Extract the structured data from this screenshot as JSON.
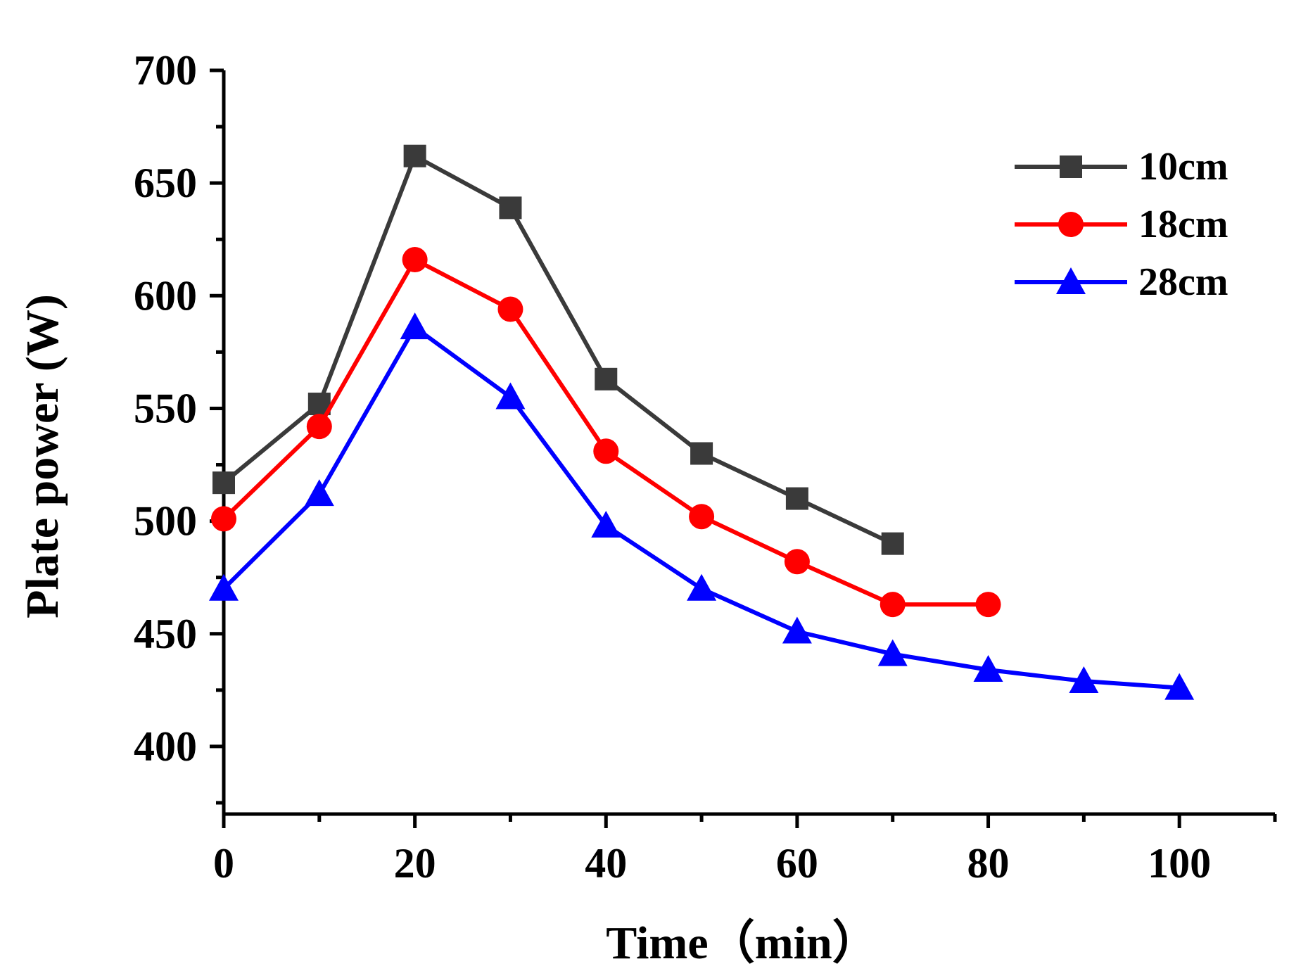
{
  "chart_data": {
    "type": "line",
    "xlabel": "Time（min）",
    "ylabel": "Plate power (W)",
    "xlim": [
      0,
      110
    ],
    "ylim": [
      370,
      700
    ],
    "x_ticks": [
      0,
      20,
      40,
      60,
      80,
      100
    ],
    "y_ticks": [
      400,
      450,
      500,
      550,
      600,
      650,
      700
    ],
    "grid": false,
    "legend_position": "top-right",
    "series": [
      {
        "name": "10cm",
        "marker": "square",
        "color": "#3a3a3a",
        "x": [
          0,
          10,
          20,
          30,
          40,
          50,
          60,
          70
        ],
        "y": [
          517,
          552,
          662,
          639,
          563,
          530,
          510,
          490
        ]
      },
      {
        "name": "18cm",
        "marker": "circle",
        "color": "#ff0000",
        "x": [
          0,
          10,
          20,
          30,
          40,
          50,
          60,
          70,
          80
        ],
        "y": [
          501,
          542,
          616,
          594,
          531,
          502,
          482,
          463,
          463
        ]
      },
      {
        "name": "28cm",
        "marker": "triangle",
        "color": "#0000ff",
        "x": [
          0,
          10,
          20,
          30,
          40,
          50,
          60,
          70,
          80,
          90,
          100
        ],
        "y": [
          470,
          512,
          586,
          555,
          498,
          470,
          451,
          441,
          434,
          429,
          426
        ]
      }
    ]
  }
}
